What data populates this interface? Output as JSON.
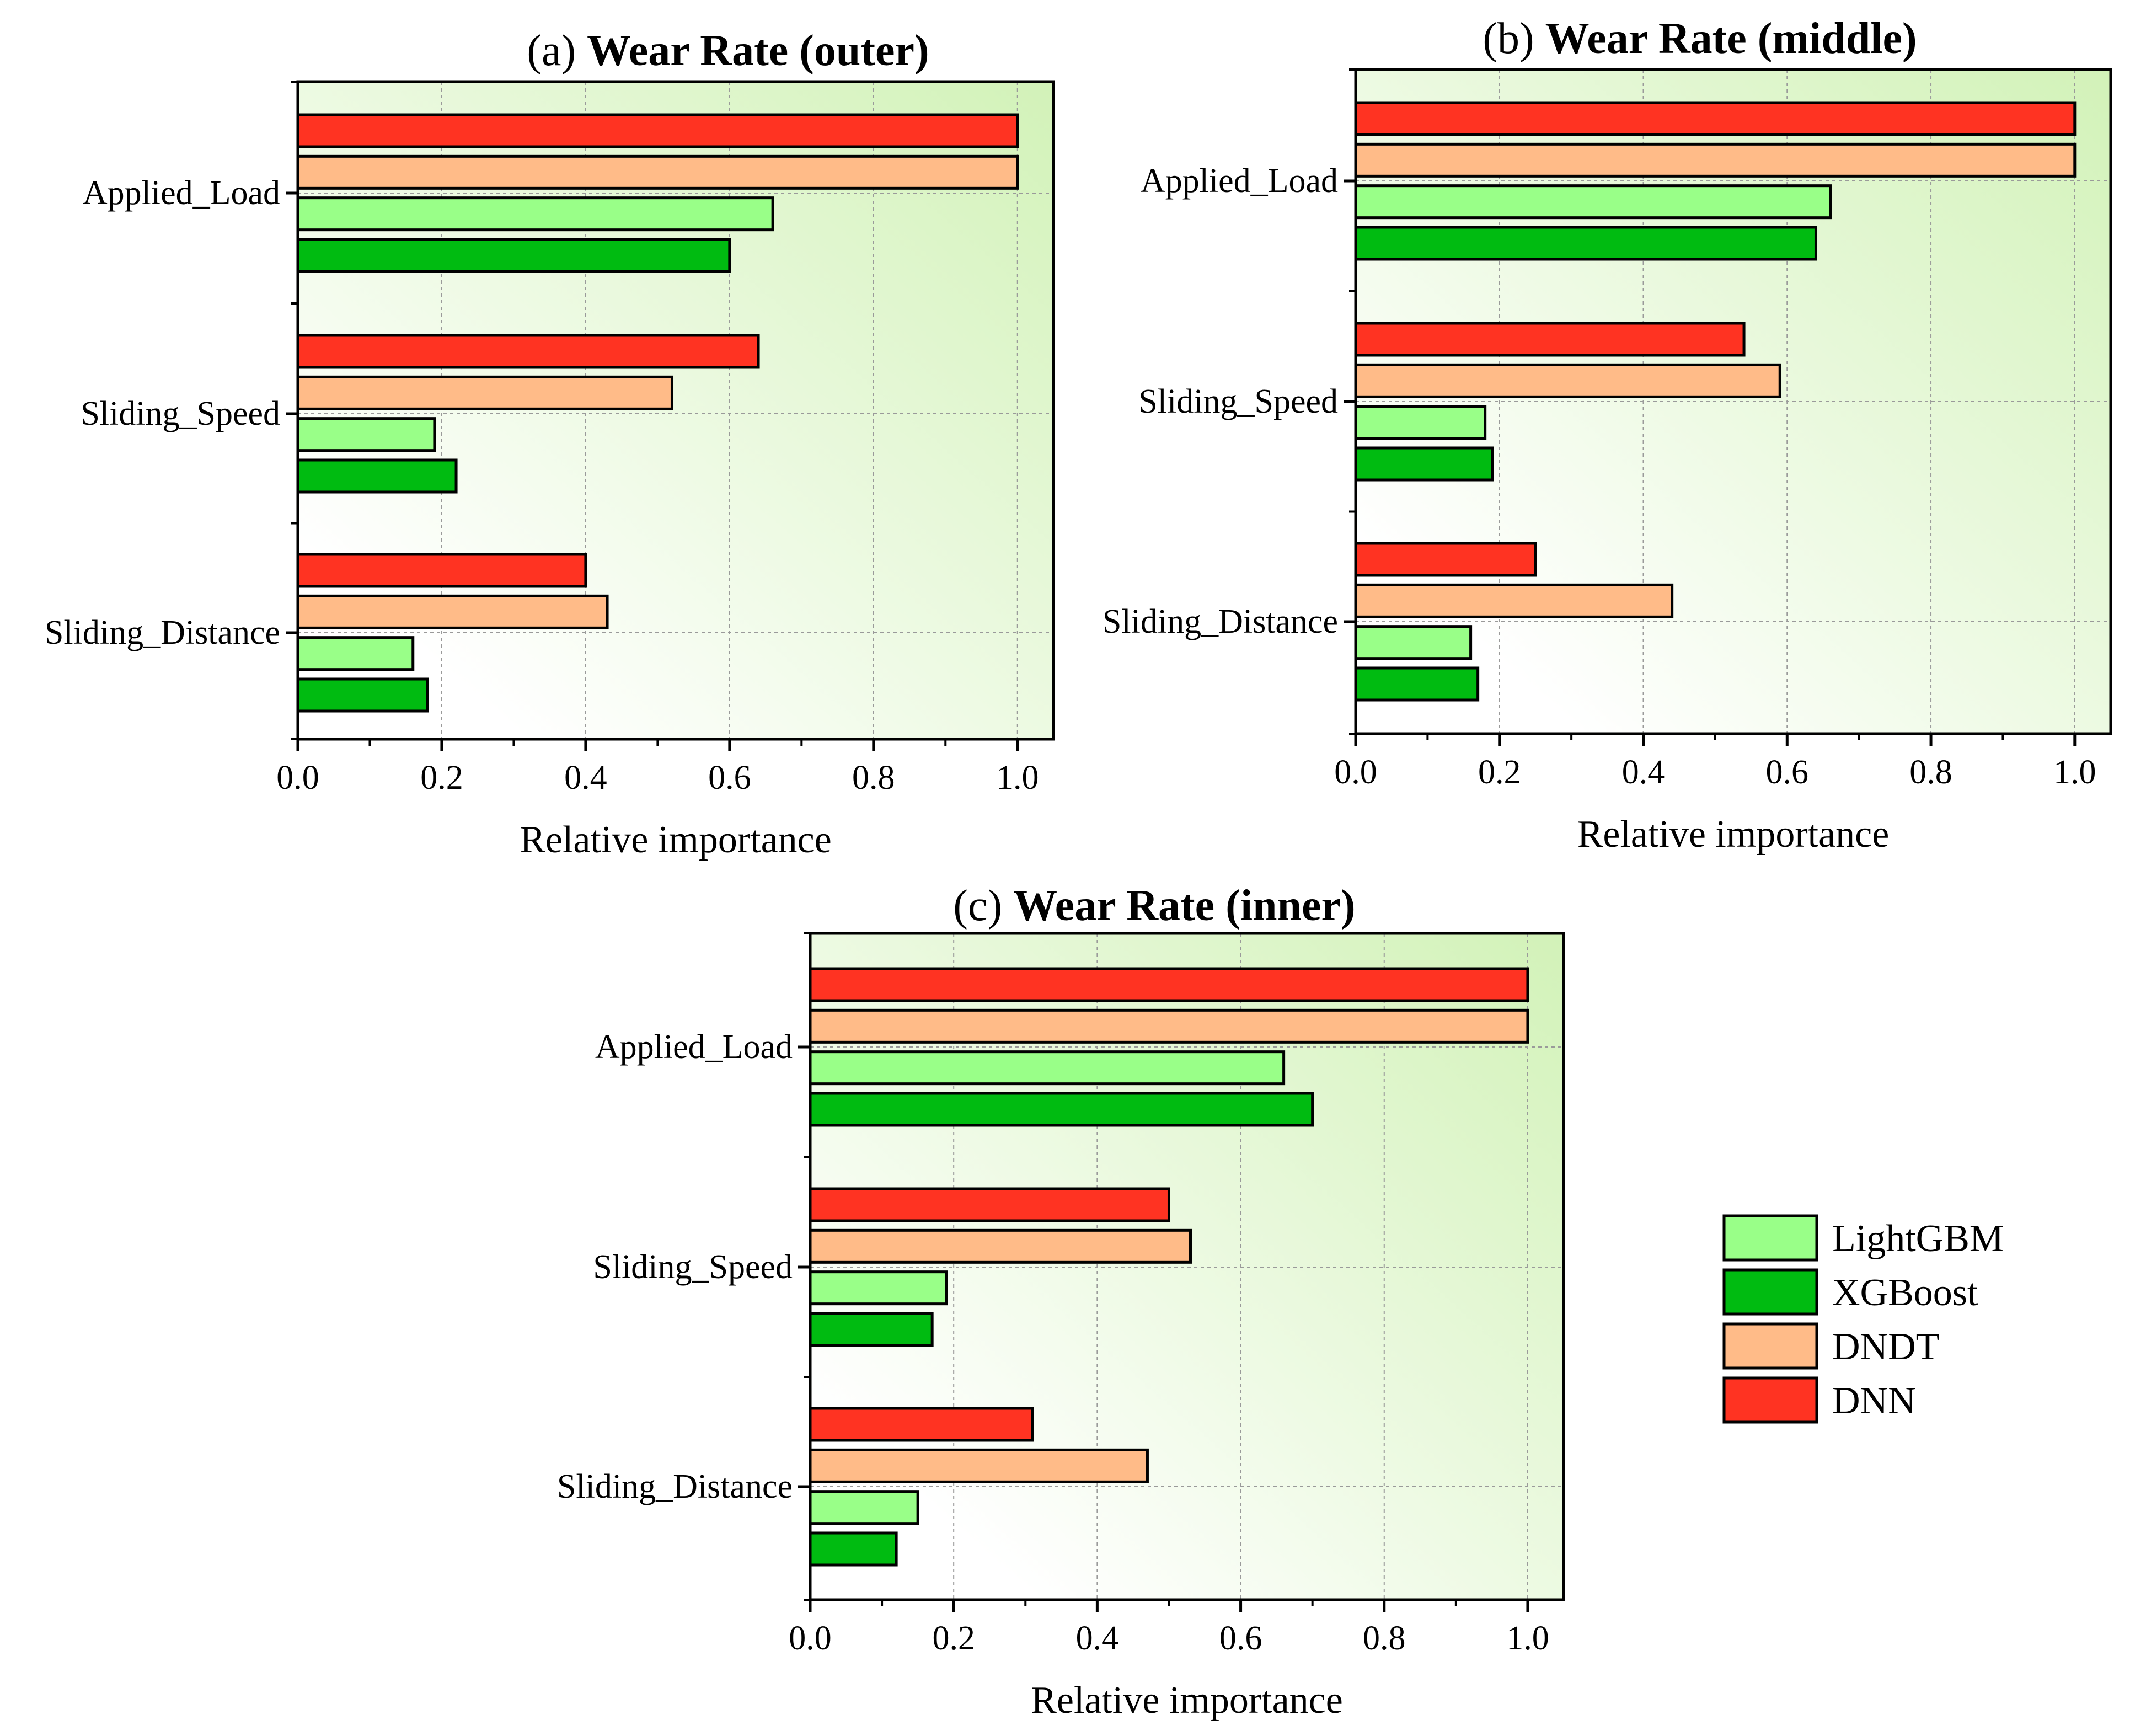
{
  "colors": {
    "LightGBM": "#99ff88",
    "XGBoost": "#00bb11",
    "DNDT": "#ffbb88",
    "DNN": "#ff3322",
    "bg_top": "#d2f2b8",
    "bg_bottom": "#ffffff"
  },
  "legend": {
    "entries": [
      "LightGBM",
      "XGBoost",
      "DNDT",
      "DNN"
    ]
  },
  "chart_data": [
    {
      "type": "bar",
      "orientation": "horizontal",
      "panel": "a",
      "title_prefix": "(a) ",
      "title_bold": "Wear Rate (outer)",
      "xlabel": "Relative importance",
      "xlim": [
        0,
        1.05
      ],
      "xticks": [
        "0.0",
        "0.2",
        "0.4",
        "0.6",
        "0.8",
        "1.0"
      ],
      "categories": [
        "Applied_Load",
        "Sliding_Speed",
        "Sliding_Distance"
      ],
      "series": [
        {
          "name": "DNN",
          "values": [
            1.0,
            0.64,
            0.4
          ]
        },
        {
          "name": "DNDT",
          "values": [
            1.0,
            0.52,
            0.43
          ]
        },
        {
          "name": "LightGBM",
          "values": [
            0.66,
            0.19,
            0.16
          ]
        },
        {
          "name": "XGBoost",
          "values": [
            0.6,
            0.22,
            0.18
          ]
        }
      ]
    },
    {
      "type": "bar",
      "orientation": "horizontal",
      "panel": "b",
      "title_prefix": "(b) ",
      "title_bold": "Wear Rate (middle)",
      "xlabel": "Relative importance",
      "xlim": [
        0,
        1.05
      ],
      "xticks": [
        "0.0",
        "0.2",
        "0.4",
        "0.6",
        "0.8",
        "1.0"
      ],
      "categories": [
        "Applied_Load",
        "Sliding_Speed",
        "Sliding_Distance"
      ],
      "series": [
        {
          "name": "DNN",
          "values": [
            1.0,
            0.54,
            0.25
          ]
        },
        {
          "name": "DNDT",
          "values": [
            1.0,
            0.59,
            0.44
          ]
        },
        {
          "name": "LightGBM",
          "values": [
            0.66,
            0.18,
            0.16
          ]
        },
        {
          "name": "XGBoost",
          "values": [
            0.64,
            0.19,
            0.17
          ]
        }
      ]
    },
    {
      "type": "bar",
      "orientation": "horizontal",
      "panel": "c",
      "title_prefix": "(c) ",
      "title_bold": "Wear Rate (inner)",
      "xlabel": "Relative importance",
      "xlim": [
        0,
        1.05
      ],
      "xticks": [
        "0.0",
        "0.2",
        "0.4",
        "0.6",
        "0.8",
        "1.0"
      ],
      "categories": [
        "Applied_Load",
        "Sliding_Speed",
        "Sliding_Distance"
      ],
      "series": [
        {
          "name": "DNN",
          "values": [
            1.0,
            0.5,
            0.31
          ]
        },
        {
          "name": "DNDT",
          "values": [
            1.0,
            0.53,
            0.47
          ]
        },
        {
          "name": "LightGBM",
          "values": [
            0.66,
            0.19,
            0.15
          ]
        },
        {
          "name": "XGBoost",
          "values": [
            0.7,
            0.17,
            0.12
          ]
        }
      ]
    }
  ]
}
